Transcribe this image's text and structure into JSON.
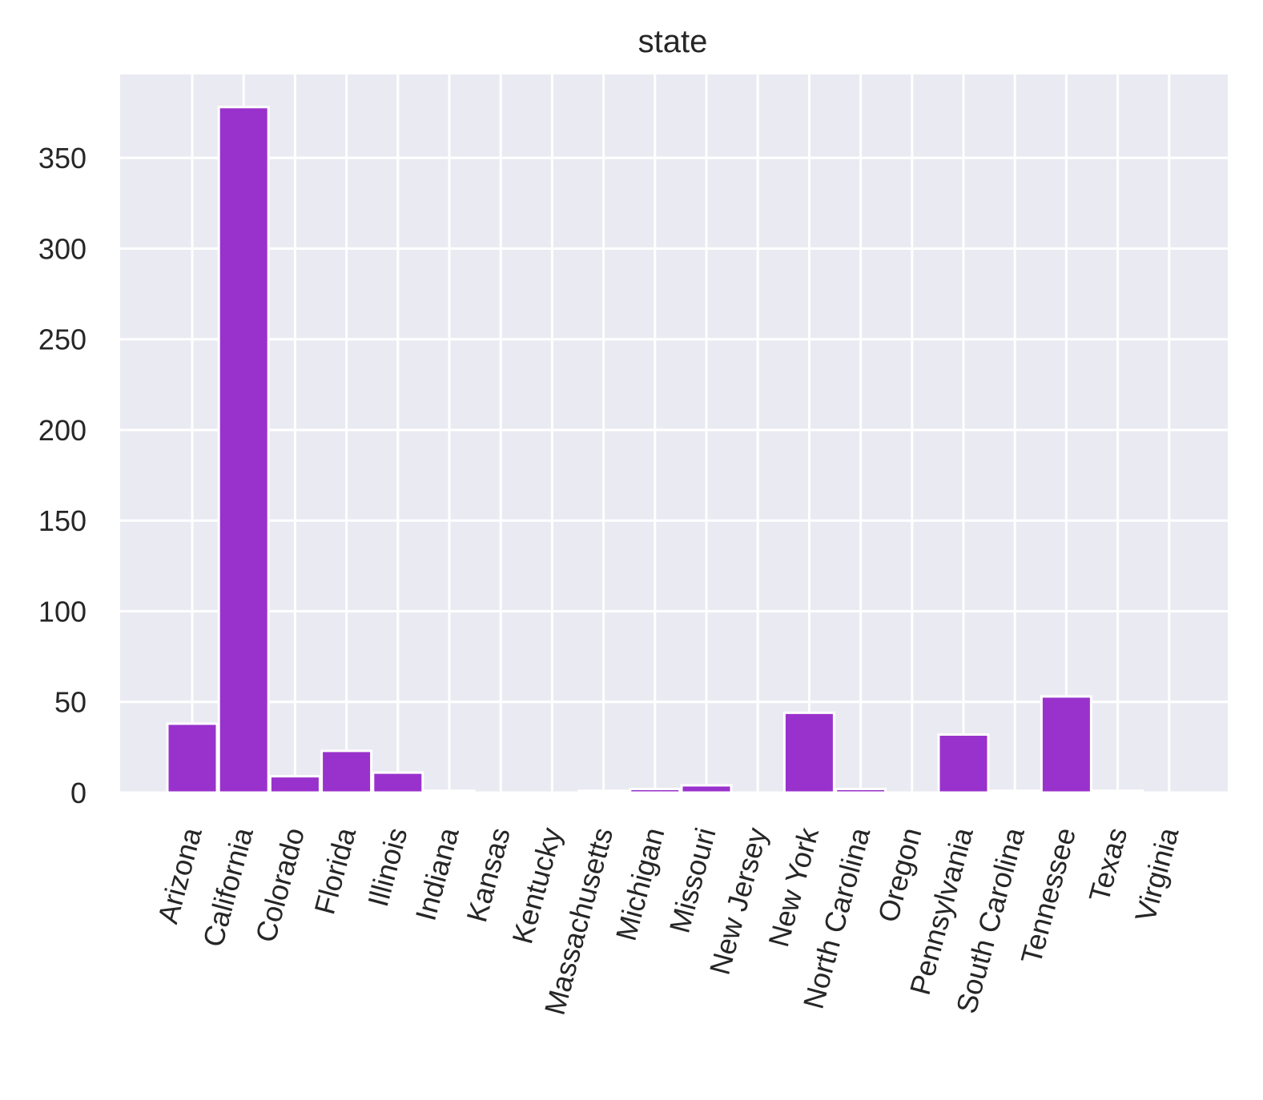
{
  "chart_data": {
    "type": "bar",
    "title": "state",
    "xlabel": "",
    "ylabel": "",
    "categories": [
      "Arizona",
      "California",
      "Colorado",
      "Florida",
      "Illinois",
      "Indiana",
      "Kansas",
      "Kentucky",
      "Massachusetts",
      "Michigan",
      "Missouri",
      "New Jersey",
      "New York",
      "North Carolina",
      "Oregon",
      "Pennsylvania",
      "South Carolina",
      "Tennessee",
      "Texas",
      "Virginia"
    ],
    "values": [
      38,
      378,
      9,
      23,
      11,
      1,
      0,
      0,
      1,
      2,
      4,
      0,
      44,
      2,
      0,
      32,
      1,
      53,
      1,
      0
    ],
    "ylim": [
      0,
      396
    ],
    "yticks": [
      0,
      50,
      100,
      150,
      200,
      250,
      300,
      350
    ],
    "grid": true,
    "legend": "none",
    "x_tick_rotation_deg": 75,
    "colors": {
      "bar": "#9932CC",
      "plot_background": "#EAEAF2",
      "grid": "#FFFFFF",
      "text": "#262626"
    }
  }
}
